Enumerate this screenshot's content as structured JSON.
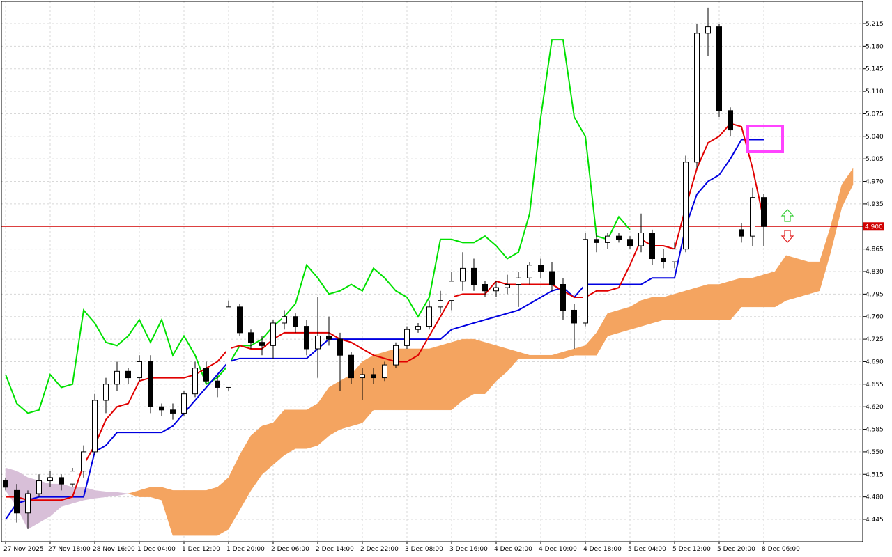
{
  "chart_data": {
    "type": "candlestick",
    "ylim": [
      4.4104,
      5.2496
    ],
    "yticks": [
      4.445,
      {
        "value": 4.48,
        "label": "4.480"
      },
      4.515,
      {
        "value": 4.55,
        "label": "4.550"
      },
      4.585,
      {
        "value": 4.62,
        "label": "4.620"
      },
      4.655,
      {
        "value": 4.69,
        "label": "4.690"
      },
      4.725,
      {
        "value": 4.76,
        "label": "4.760"
      },
      4.795,
      {
        "value": 4.83,
        "label": "4.830"
      },
      4.865,
      4.935,
      {
        "value": 4.97,
        "label": "4.970"
      },
      5.005,
      {
        "value": 5.04,
        "label": "5.040"
      },
      5.075,
      {
        "value": 5.11,
        "label": "5.110"
      },
      5.145,
      {
        "value": 5.18,
        "label": "5.180"
      },
      5.215
    ],
    "xticks": [
      {
        "value": 0,
        "label": "27 Nov 2025"
      },
      {
        "value": 4,
        "label": "27 Nov 18:00"
      },
      {
        "value": 8,
        "label": "28 Nov 16:00"
      },
      {
        "value": 12,
        "label": "1 Dec 04:00"
      },
      {
        "value": 16,
        "label": "1 Dec 12:00"
      },
      {
        "value": 20,
        "label": "1 Dec 20:00"
      },
      {
        "value": 24,
        "label": "2 Dec 06:00"
      },
      {
        "value": 28,
        "label": "2 Dec 14:00"
      },
      {
        "value": 32,
        "label": "2 Dec 22:00"
      },
      {
        "value": 36,
        "label": "3 Dec 08:00"
      },
      {
        "value": 40,
        "label": "3 Dec 16:00"
      },
      {
        "value": 44,
        "label": "4 Dec 02:00"
      },
      {
        "value": 48,
        "label": "4 Dec 10:00"
      },
      {
        "value": 52,
        "label": "4 Dec 18:00"
      },
      {
        "value": 56,
        "label": "5 Dec 04:00"
      },
      {
        "value": 60,
        "label": "5 Dec 12:00"
      },
      {
        "value": 64,
        "label": "5 Dec 20:00"
      },
      {
        "value": 68,
        "label": "8 Dec 06:00"
      }
    ],
    "grid": true,
    "up_color": "#ffffff",
    "down_color": "#000000",
    "open": [
      4.505,
      4.49,
      4.455,
      4.485,
      4.505,
      4.51,
      4.5,
      4.52,
      4.55,
      4.63,
      4.655,
      4.675,
      4.665,
      4.69,
      4.62,
      4.615,
      4.61,
      4.64,
      4.68,
      4.66,
      4.65,
      4.775,
      4.735,
      4.72,
      4.715,
      4.75,
      4.76,
      4.745,
      4.71,
      4.73,
      4.725,
      4.7,
      4.665,
      4.67,
      4.665,
      4.685,
      4.715,
      4.74,
      4.745,
      4.775,
      4.785,
      4.815,
      4.835,
      4.81,
      4.8,
      4.805,
      4.81,
      4.82,
      4.84,
      4.83,
      4.81,
      4.77,
      4.75,
      4.88,
      4.875,
      4.885,
      4.88,
      4.87,
      4.89,
      4.85,
      4.845,
      4.865,
      5.0,
      5.2,
      5.21,
      5.08,
      4.895,
      4.885,
      4.945
    ],
    "high": [
      4.51,
      4.5,
      4.49,
      4.515,
      4.52,
      4.515,
      4.525,
      4.56,
      4.64,
      4.665,
      4.69,
      4.68,
      4.7,
      4.7,
      4.625,
      4.625,
      4.645,
      4.69,
      4.69,
      4.67,
      4.785,
      4.78,
      4.74,
      4.73,
      4.755,
      4.77,
      4.765,
      4.755,
      4.79,
      4.76,
      4.735,
      4.705,
      4.68,
      4.68,
      4.69,
      4.72,
      4.745,
      4.75,
      4.785,
      4.8,
      4.83,
      4.86,
      4.85,
      4.815,
      4.815,
      4.825,
      4.83,
      4.845,
      4.85,
      4.845,
      4.82,
      4.78,
      4.89,
      4.89,
      4.89,
      4.89,
      4.885,
      4.92,
      4.895,
      4.865,
      4.875,
      5.01,
      5.215,
      5.24,
      5.215,
      5.085,
      4.905,
      4.96,
      4.95
    ],
    "low": [
      4.49,
      4.44,
      4.43,
      4.48,
      4.495,
      4.49,
      4.495,
      4.51,
      4.545,
      4.61,
      4.645,
      4.655,
      4.66,
      4.61,
      4.605,
      4.6,
      4.605,
      4.635,
      4.655,
      4.635,
      4.645,
      4.73,
      4.71,
      4.7,
      4.695,
      4.74,
      4.735,
      4.7,
      4.665,
      4.715,
      4.645,
      4.655,
      4.63,
      4.655,
      4.66,
      4.68,
      4.71,
      4.735,
      4.74,
      4.765,
      4.77,
      4.8,
      4.8,
      4.79,
      4.79,
      4.795,
      4.775,
      4.81,
      4.82,
      4.8,
      4.755,
      4.71,
      4.745,
      4.86,
      4.865,
      4.875,
      4.865,
      4.86,
      4.84,
      4.835,
      4.835,
      4.86,
      4.99,
      5.165,
      5.07,
      5.04,
      4.875,
      4.87,
      4.87
    ],
    "close": [
      4.495,
      4.455,
      4.485,
      4.505,
      4.51,
      4.5,
      4.52,
      4.55,
      4.63,
      4.655,
      4.675,
      4.665,
      4.69,
      4.62,
      4.615,
      4.61,
      4.64,
      4.68,
      4.66,
      4.65,
      4.775,
      4.735,
      4.72,
      4.715,
      4.75,
      4.76,
      4.745,
      4.71,
      4.73,
      4.725,
      4.7,
      4.665,
      4.67,
      4.665,
      4.685,
      4.715,
      4.74,
      4.745,
      4.775,
      4.785,
      4.815,
      4.835,
      4.81,
      4.8,
      4.805,
      4.81,
      4.82,
      4.84,
      4.83,
      4.81,
      4.77,
      4.75,
      4.88,
      4.875,
      4.885,
      4.88,
      4.87,
      4.89,
      4.85,
      4.845,
      4.865,
      5.0,
      5.2,
      5.21,
      5.08,
      5.05,
      4.885,
      4.945,
      4.9
    ],
    "cloud": {
      "bull_color": "#f4a460",
      "bear_color": "#d8bfd8",
      "span_a": [
        4.49,
        4.465,
        4.43,
        4.44,
        4.45,
        4.465,
        4.47,
        4.475,
        4.478,
        4.48,
        4.482,
        4.485,
        4.49,
        4.495,
        4.495,
        4.49,
        4.49,
        4.49,
        4.49,
        4.495,
        4.51,
        4.545,
        4.575,
        4.59,
        4.595,
        4.615,
        4.615,
        4.615,
        4.625,
        4.65,
        4.66,
        4.67,
        4.69,
        4.7,
        4.705,
        4.71,
        4.71,
        4.71,
        4.71,
        4.715,
        4.72,
        4.725,
        4.725,
        4.72,
        4.715,
        4.71,
        4.705,
        4.7,
        4.7,
        4.7,
        4.705,
        4.71,
        4.715,
        4.735,
        4.765,
        4.77,
        4.775,
        4.785,
        4.79,
        4.79,
        4.795,
        4.8,
        4.805,
        4.81,
        4.81,
        4.815,
        4.82,
        4.82,
        4.825,
        4.83,
        4.855,
        4.85,
        4.845,
        4.845,
        4.9,
        4.965,
        4.99
      ],
      "span_b": [
        4.525,
        4.52,
        4.51,
        4.505,
        4.5,
        4.5,
        4.495,
        4.495,
        4.49,
        4.488,
        4.487,
        4.485,
        4.48,
        4.48,
        4.475,
        4.42,
        4.42,
        4.42,
        4.42,
        4.42,
        4.43,
        4.46,
        4.49,
        4.515,
        4.53,
        4.545,
        4.555,
        4.555,
        4.56,
        4.575,
        4.585,
        4.59,
        4.595,
        4.615,
        4.615,
        4.615,
        4.615,
        4.615,
        4.615,
        4.615,
        4.615,
        4.63,
        4.64,
        4.64,
        4.66,
        4.675,
        4.695,
        4.695,
        4.695,
        4.695,
        4.695,
        4.7,
        4.7,
        4.7,
        4.73,
        4.735,
        4.74,
        4.745,
        4.75,
        4.755,
        4.755,
        4.755,
        4.755,
        4.755,
        4.755,
        4.755,
        4.775,
        4.775,
        4.775,
        4.775,
        4.785,
        4.79,
        4.795,
        4.8,
        4.86,
        4.93,
        4.965
      ]
    },
    "lines": [
      {
        "color": "#00e000",
        "values": [
          4.67,
          4.625,
          4.61,
          4.615,
          4.67,
          4.65,
          4.655,
          4.77,
          4.75,
          4.72,
          4.715,
          4.73,
          4.755,
          4.72,
          4.755,
          4.7,
          4.73,
          4.7,
          4.655,
          4.665,
          4.685,
          4.715,
          4.715,
          4.725,
          4.745,
          4.76,
          4.78,
          4.84,
          4.82,
          4.795,
          4.8,
          4.81,
          4.8,
          4.835,
          4.82,
          4.8,
          4.79,
          4.76,
          4.79,
          4.88,
          4.88,
          4.875,
          4.875,
          4.885,
          4.87,
          4.85,
          4.86,
          4.92,
          5.07,
          5.19,
          5.19,
          5.07,
          5.04,
          4.885,
          4.88,
          4.915,
          4.895
        ]
      },
      {
        "color": "#0000e0",
        "values": [
          4.445,
          4.47,
          4.475,
          4.48,
          4.48,
          4.48,
          4.48,
          4.48,
          4.55,
          4.56,
          4.58,
          4.58,
          4.58,
          4.58,
          4.58,
          4.59,
          4.61,
          4.63,
          4.65,
          4.67,
          4.69,
          4.695,
          4.695,
          4.695,
          4.695,
          4.695,
          4.695,
          4.695,
          4.71,
          4.725,
          4.725,
          4.725,
          4.725,
          4.725,
          4.725,
          4.725,
          4.725,
          4.725,
          4.725,
          4.725,
          4.74,
          4.745,
          4.75,
          4.755,
          4.76,
          4.765,
          4.77,
          4.78,
          4.79,
          4.8,
          4.805,
          4.79,
          4.81,
          4.81,
          4.81,
          4.81,
          4.81,
          4.81,
          4.82,
          4.82,
          4.82,
          4.9,
          4.95,
          4.97,
          4.98,
          5.005,
          5.035,
          5.035,
          5.035
        ]
      },
      {
        "color": "#e00000",
        "values": [
          4.48,
          4.48,
          4.475,
          4.475,
          4.475,
          4.475,
          4.48,
          4.53,
          4.56,
          4.6,
          4.62,
          4.625,
          4.66,
          4.665,
          4.665,
          4.665,
          4.665,
          4.67,
          4.68,
          4.69,
          4.71,
          4.715,
          4.71,
          4.71,
          4.725,
          4.735,
          4.735,
          4.735,
          4.735,
          4.735,
          4.725,
          4.72,
          4.71,
          4.7,
          4.695,
          4.69,
          4.69,
          4.7,
          4.73,
          4.76,
          4.79,
          4.795,
          4.795,
          4.795,
          4.815,
          4.81,
          4.81,
          4.81,
          4.81,
          4.81,
          4.8,
          4.79,
          4.79,
          4.8,
          4.8,
          4.805,
          4.84,
          4.88,
          4.87,
          4.87,
          4.865,
          4.93,
          4.99,
          5.03,
          5.04,
          5.06,
          5.055,
          4.99,
          4.91
        ]
      }
    ],
    "price_line": {
      "value": 4.9,
      "label": "4.900",
      "color": "#d00000"
    }
  }
}
